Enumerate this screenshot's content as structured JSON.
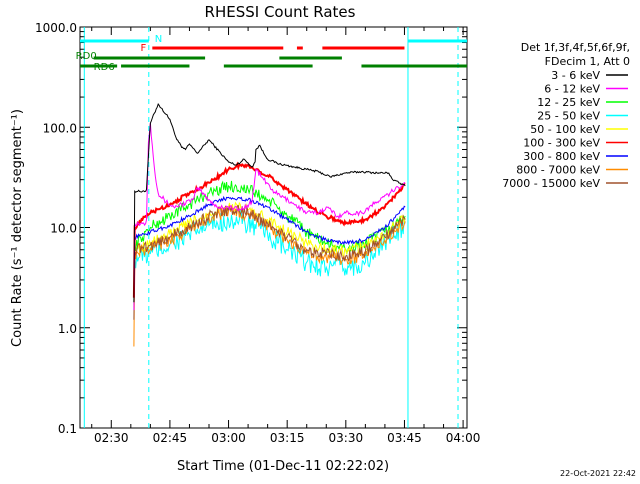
{
  "chart_data": {
    "type": "line",
    "title": "RHESSI Count Rates",
    "xlabel": "Start Time (01-Dec-11 02:22:02)",
    "ylabel": "Count Rate (s⁻¹ detector segment⁻¹)",
    "y_scale": "log",
    "ylim": [
      0.1,
      1000
    ],
    "xlim_minutes": [
      142,
      241
    ],
    "x_ticks": [
      {
        "t": 150,
        "label": "02:30"
      },
      {
        "t": 165,
        "label": "02:45"
      },
      {
        "t": 180,
        "label": "03:00"
      },
      {
        "t": 195,
        "label": "03:15"
      },
      {
        "t": 210,
        "label": "03:30"
      },
      {
        "t": 225,
        "label": "03:45"
      },
      {
        "t": 240,
        "label": "04:00"
      }
    ],
    "y_ticks": [
      {
        "v": 0.1,
        "label": "0.1"
      },
      {
        "v": 1,
        "label": "1.0"
      },
      {
        "v": 10,
        "label": "10.0"
      },
      {
        "v": 100,
        "label": "100.0"
      },
      {
        "v": 1000,
        "label": "1000.0"
      }
    ],
    "legend_header": [
      "Det 1f,3f,4f,5f,6f,9f,",
      "FDecim 1, Att 0"
    ],
    "legend_position": "right",
    "series": [
      {
        "name": "3 - 6 keV",
        "color": "#000000",
        "x": [
          155.8,
          156,
          158,
          158.8,
          159,
          160,
          162,
          165,
          166.5,
          168,
          169,
          170,
          172,
          175,
          178,
          180,
          182,
          184,
          186,
          186.8,
          187,
          188,
          189,
          190,
          193,
          197,
          200,
          203,
          206,
          210,
          214,
          218,
          221,
          222,
          225.2
        ],
        "y": [
          1.8,
          23,
          23,
          23,
          24,
          110,
          170,
          120,
          80,
          63,
          60,
          68,
          55,
          75,
          55,
          45,
          42,
          48,
          40,
          45,
          60,
          66,
          55,
          48,
          43,
          40,
          38,
          36,
          32,
          35,
          36,
          35,
          35,
          30,
          26
        ]
      },
      {
        "name": "6 - 12 keV",
        "color": "#ff00ff",
        "x": [
          155.8,
          156,
          158,
          158.8,
          159,
          159.5,
          160,
          161,
          162,
          164,
          166,
          168,
          171,
          172,
          175,
          177,
          180,
          183,
          186,
          187,
          189,
          192,
          196,
          200,
          203,
          205,
          208,
          210,
          214,
          218,
          222,
          225.2
        ],
        "y": [
          1.5,
          11,
          11,
          11,
          12,
          70,
          110,
          40,
          22,
          18,
          16,
          17,
          19,
          25,
          19,
          16,
          16,
          15,
          18,
          38,
          30,
          22,
          18,
          14,
          14,
          16,
          13,
          14,
          14,
          18,
          23,
          28
        ]
      },
      {
        "name": "12 - 25 keV",
        "color": "#00ff00",
        "x": [
          155.8,
          156,
          160,
          165,
          170,
          175,
          180,
          185,
          190,
          195,
          200,
          205,
          210,
          215,
          220,
          225.2
        ],
        "y": [
          1.7,
          6.5,
          10,
          13,
          17,
          22,
          26,
          24,
          19,
          13,
          9,
          7,
          6,
          7,
          9,
          13
        ]
      },
      {
        "name": "25 - 50 keV",
        "color": "#00ffff",
        "x": [
          155.8,
          156,
          160,
          165,
          170,
          175,
          180,
          185,
          190,
          195,
          200,
          205,
          210,
          215,
          220,
          225.2
        ],
        "y": [
          1.5,
          5,
          5.5,
          6.8,
          8.5,
          10.5,
          12,
          11,
          8.5,
          6,
          4.5,
          4,
          3.9,
          4.5,
          7,
          11
        ]
      },
      {
        "name": "50 - 100 keV",
        "color": "#ffff00",
        "x": [
          155.8,
          156,
          160,
          165,
          170,
          175,
          180,
          185,
          190,
          195,
          200,
          205,
          210,
          215,
          220,
          225.2
        ],
        "y": [
          1.6,
          6,
          7,
          8.5,
          11,
          14,
          16,
          15,
          12,
          9,
          7,
          6,
          5.8,
          6.5,
          8.5,
          12.5
        ]
      },
      {
        "name": "100 - 300 keV",
        "color": "#ff0000",
        "x": [
          155.8,
          156,
          158,
          160,
          165,
          170,
          175,
          180,
          183,
          186,
          190,
          195,
          200,
          205,
          210,
          215,
          220,
          223,
          225.2
        ],
        "y": [
          2,
          10,
          12,
          14,
          17,
          22,
          28,
          38,
          42,
          40,
          33,
          24,
          17,
          13,
          11,
          12,
          16,
          22,
          27
        ]
      },
      {
        "name": "300 - 800 keV",
        "color": "#0000ff",
        "x": [
          155.8,
          156,
          160,
          165,
          170,
          175,
          180,
          185,
          190,
          195,
          200,
          205,
          210,
          215,
          220,
          225.2
        ],
        "y": [
          2,
          8,
          9,
          10.5,
          13,
          17,
          20,
          19,
          16,
          12,
          9,
          7.5,
          7,
          7.5,
          10,
          16
        ]
      },
      {
        "name": "800 - 7000 keV",
        "color": "#ff8c00",
        "x": [
          155.8,
          156,
          160,
          165,
          170,
          175,
          180,
          185,
          190,
          195,
          200,
          205,
          210,
          215,
          220,
          225.2
        ],
        "y": [
          0.65,
          5.5,
          6.2,
          7.5,
          9.5,
          12.5,
          14.5,
          13.5,
          10.5,
          7.5,
          5.5,
          5,
          4.8,
          5.3,
          7.5,
          11.5
        ]
      },
      {
        "name": "7000 - 15000 keV",
        "color": "#a0522d",
        "x": [
          155.8,
          156,
          160,
          165,
          170,
          175,
          180,
          185,
          190,
          195,
          200,
          205,
          210,
          215,
          220,
          225.2
        ],
        "y": [
          1.2,
          6,
          6.7,
          8,
          10,
          13,
          15,
          14,
          11,
          8,
          6,
          5.4,
          5.2,
          5.8,
          8,
          12
        ]
      }
    ],
    "vertical_lines": [
      {
        "t": 143.1,
        "style": "solid",
        "color": "#00ffff"
      },
      {
        "t": 159.6,
        "style": "dashed",
        "color": "#00ffff"
      },
      {
        "t": 225.9,
        "style": "solid",
        "color": "#00ffff"
      },
      {
        "t": 238.7,
        "style": "dashed",
        "color": "#00ffff"
      }
    ],
    "flag_bars": [
      {
        "label": "N",
        "color": "#00ffff",
        "level": 1,
        "segments": [
          [
            142,
            159.6
          ],
          [
            225.9,
            241
          ]
        ]
      },
      {
        "label": "F",
        "color": "#ff0000",
        "level": 2,
        "segments": [
          [
            160.5,
            194
          ],
          [
            197.5,
            199
          ],
          [
            204,
            225
          ]
        ]
      },
      {
        "label": "RD0",
        "color": "#008000",
        "level": 3,
        "segments": [
          [
            145.5,
            174
          ],
          [
            193,
            209
          ]
        ]
      },
      {
        "label": "RD6",
        "color": "#008000",
        "level": 4,
        "segments": [
          [
            142,
            151.5
          ],
          [
            152.5,
            170
          ],
          [
            178.8,
            201.5
          ],
          [
            214,
            241
          ]
        ]
      }
    ]
  },
  "timestamp": "22-Oct-2021 22:42"
}
